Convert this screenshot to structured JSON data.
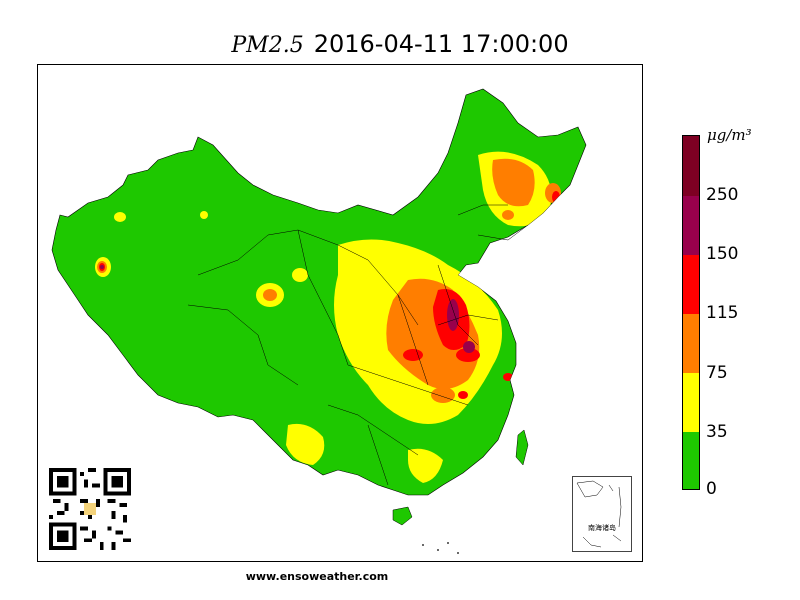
{
  "header": {
    "variable": "PM2.5",
    "datetime": "2016-04-11 17:00:00"
  },
  "map": {
    "region": "China",
    "inset_label": "南海诸岛"
  },
  "colorbar": {
    "unit": "μg/m³",
    "ticks": [
      "0",
      "35",
      "75",
      "115",
      "150",
      "250"
    ],
    "bins": [
      {
        "range": "0-35",
        "color": "#1ec800"
      },
      {
        "range": "35-75",
        "color": "#ffff00"
      },
      {
        "range": "75-115",
        "color": "#ff7e00"
      },
      {
        "range": "115-150",
        "color": "#ff0000"
      },
      {
        "range": "150-250",
        "color": "#99004c"
      },
      {
        "range": ">250",
        "color": "#7e0023"
      }
    ]
  },
  "footer": {
    "website": "www.ensoweather.com"
  }
}
